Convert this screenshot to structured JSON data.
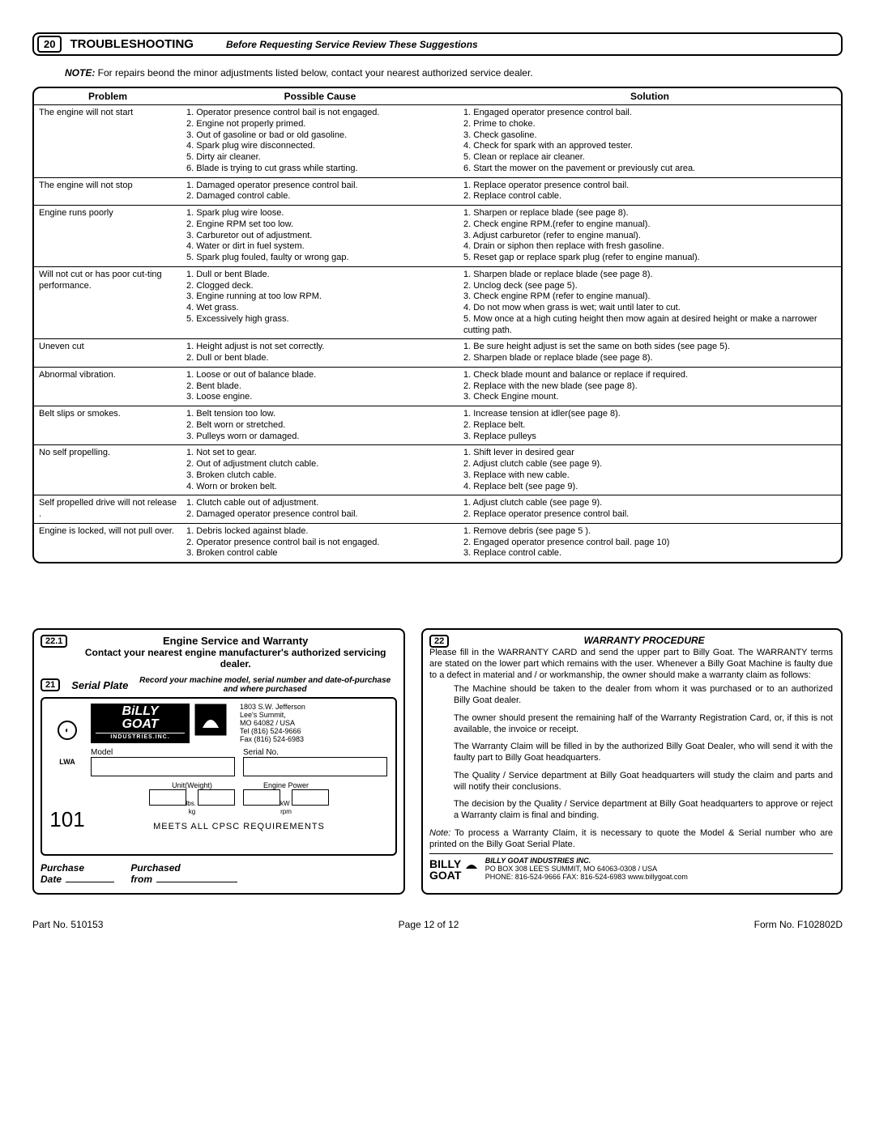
{
  "header": {
    "num": "20",
    "title": "TROUBLESHOOTING",
    "subtitle": "Before Requesting Service Review These Suggestions"
  },
  "note": {
    "label": "NOTE:",
    "text": " For repairs beond the minor adjustments listed below, contact your nearest authorized service dealer."
  },
  "table": {
    "columns": [
      "Problem",
      "Possible Cause",
      "Solution"
    ],
    "rows": [
      {
        "problem": "The engine will not start",
        "cause": "1. Operator presence control bail is not engaged.\n2. Engine not properly primed.\n3. Out of gasoline or bad or old gasoline.\n4. Spark plug wire disconnected.\n5. Dirty air cleaner.\n6. Blade is trying to cut grass while starting.",
        "solution": "1. Engaged operator presence control bail.\n2. Prime to choke.\n3. Check gasoline.\n4. Check for spark with an approved tester.\n5. Clean or replace air cleaner.\n6. Start the mower on the pavement or previously cut area."
      },
      {
        "problem": "The engine will not  stop",
        "cause": "1. Damaged operator presence control bail.\n2. Damaged control cable.",
        "solution": "1. Replace operator presence control bail.\n2. Replace control cable."
      },
      {
        "problem": "Engine runs poorly",
        "cause": "1. Spark plug wire loose.\n2. Engine RPM set too low.\n3. Carburetor out of adjustment.\n4. Water or dirt in fuel system.\n5. Spark plug fouled, faulty or wrong gap.",
        "solution": "1. Sharpen or replace blade (see page 8).\n2. Check engine RPM.(refer to engine manual).\n3. Adjust carburetor (refer to engine manual).\n4. Drain or siphon then replace with fresh gasoline.\n5. Reset gap or replace spark plug (refer to engine manual)."
      },
      {
        "problem": "Will not cut or has poor cut-ting performance.",
        "cause": "1. Dull or bent Blade.\n2. Clogged deck.\n3. Engine running at too low RPM.\n4. Wet grass.\n5. Excessively high grass.",
        "solution": "1. Sharpen blade or replace blade (see page 8).\n2. Unclog deck (see page 5).\n3. Check engine RPM (refer to engine manual).\n4. Do not mow when grass is wet; wait until later to cut.\n5. Mow once at a high cuting height then mow again at desired height or make a narrower cutting path."
      },
      {
        "problem": "Uneven cut",
        "cause": "1. Height adjust is not set correctly.\n2. Dull or bent blade.",
        "solution": "1. Be sure height adjust is set the same on both sides (see page 5).\n2. Sharpen blade or replace blade (see page 8)."
      },
      {
        "problem": "Abnormal vibration.",
        "cause": "1. Loose or out of balance blade.\n2. Bent blade.\n3. Loose engine.",
        "solution": "1. Check blade mount and balance or replace if required.\n2. Replace with the new blade (see page 8).\n3. Check Engine mount."
      },
      {
        "problem": "Belt slips or smokes.",
        "cause": "1. Belt tension too low.\n2. Belt worn or stretched.\n3. Pulleys worn or damaged.",
        "solution": "1. Increase tension at idler(see page 8).\n2. Replace belt.\n3. Replace pulleys"
      },
      {
        "problem": "No self propelling.",
        "cause": "1. Not set to gear.\n2. Out of adjustment clutch cable.\n3. Broken clutch cable.\n4. Worn or broken belt.",
        "solution": "1. Shift lever in desired gear\n2. Adjust clutch cable (see page 9).\n3. Replace with new cable.\n4. Replace belt (see page 9)."
      },
      {
        "problem": "Self propelled drive will not release .",
        "cause": "1. Clutch cable out of adjustment.\n2. Damaged operator presence control bail.",
        "solution": "1. Adjust clutch cable (see page 9).\n2. Replace operator presence control bail."
      },
      {
        "problem": "Engine is locked, will not pull over.",
        "cause": "1. Debris locked against blade.\n2. Operator presence control bail is not engaged.\n3. Broken control cable",
        "solution": "1. Remove debris (see page 5 ).\n2. Engaged operator presence control bail. page 10)\n3. Replace control cable."
      }
    ]
  },
  "engine": {
    "num": "22.1",
    "title": "Engine Service and Warranty",
    "sub": "Contact your nearest engine manufacturer's authorized servicing dealer."
  },
  "serial": {
    "num": "21",
    "title": "Serial Plate",
    "sub": "Record your machine model, serial number and date-of-purchase and where purchased",
    "logo_top": "BiLLY",
    "logo_bot": "GOAT",
    "logo_ind": "INDUSTRIES.INC.",
    "addr": "1803 S.W. Jefferson\nLee's Summit,\nMO   64082  / USA\nTel (816) 524-9666\nFax (816) 524-6983",
    "model_label": "Model",
    "serial_label": "Serial No.",
    "unit_label": "Unit(Weight)",
    "engine_label": "Engine Power",
    "lbs": "lbs.",
    "kg": "kg",
    "kw": "kW",
    "rpm": "rpm",
    "cpsc": "MEETS ALL CPSC REQUIREMENTS",
    "big": "101",
    "lwa": "LWA",
    "purchase_date": "Purchase Date",
    "purchased_from": "Purchased from"
  },
  "warranty": {
    "num": "22",
    "title": "WARRANTY PROCEDURE",
    "p1": "Please fill in the WARRANTY CARD and send the upper part to Billy Goat. The WARRANTY terms are stated on the lower part which remains with the user. Whenever a Billy Goat Machine is faulty due to a defect in material and / or workmanship, the owner should make a warranty claim as follows:",
    "p2": "The Machine should be taken to the dealer from whom it was purchased or to an authorized Billy Goat dealer.",
    "p3": "The owner should present the remaining half of the Warranty Registration Card, or, if this is not available, the invoice or  receipt.",
    "p4": "The Warranty Claim will be filled in by the authorized Billy Goat  Dealer, who will send it with the faulty part to Billy Goat headquarters.",
    "p5": "The Quality / Service department at Billy Goat headquarters will study the claim and parts and will notify their conclusions.",
    "p6": "The decision by the Quality / Service department at Billy Goat headquarters to approve or reject a Warranty claim is final and binding.",
    "note_label": "Note:",
    "note_text": " To process a Warranty Claim, it is necessary to quote the Model & Serial number who are printed on the Billy Goat Serial Plate.",
    "footer_name": "BILLY GOAT INDUSTRIES INC.",
    "footer_addr": "PO BOX 308 LEE'S SUMMIT, MO 64063-0308  / USA",
    "footer_phone": "PHONE: 816-524-9666 FAX: 816-524-6983     www.billygoat.com",
    "logo1": "BILLY",
    "logo2": "GOAT"
  },
  "footer": {
    "left": "Part No. 510153",
    "center": "Page 12 of 12",
    "right": "Form No. F102802D"
  }
}
